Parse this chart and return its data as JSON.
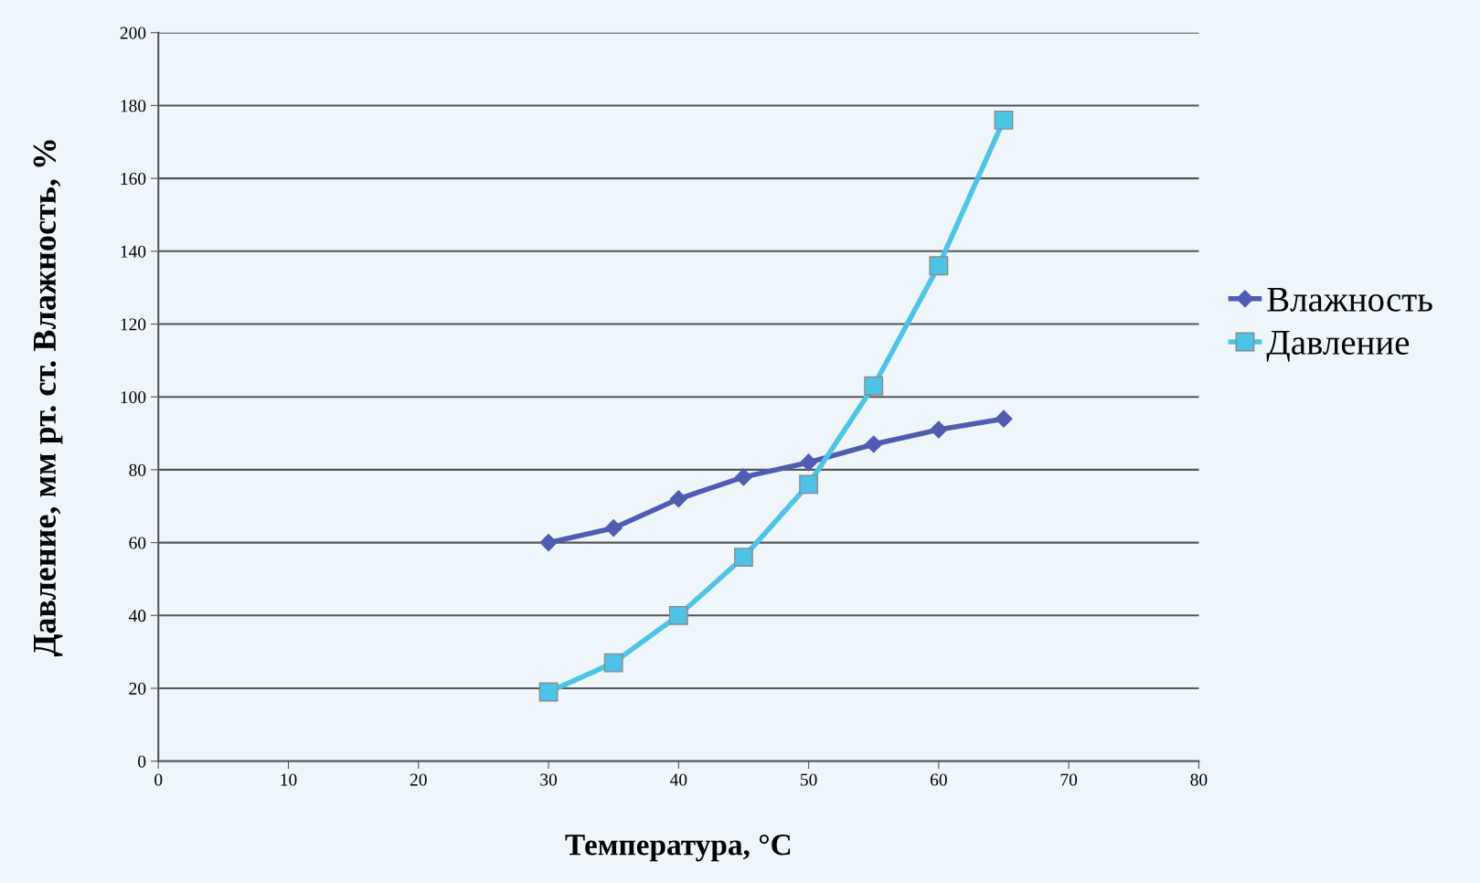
{
  "chart_data": {
    "type": "line",
    "xlabel": "Температура, °C",
    "ylabel": "Давление, мм рт. ст. Влажность, %",
    "xlim": [
      0,
      80
    ],
    "xticks": [
      0,
      10,
      20,
      30,
      40,
      50,
      60,
      70,
      80
    ],
    "ylim": [
      0,
      200
    ],
    "yticks": [
      0,
      20,
      40,
      60,
      80,
      100,
      120,
      140,
      160,
      180,
      200
    ],
    "grid": "y",
    "legend": "right",
    "line_style": "solid",
    "series": [
      {
        "name": "Влажность",
        "color": "#4f5bb5",
        "marker": "diamond",
        "x": [
          30,
          35,
          40,
          45,
          50,
          55,
          60,
          65
        ],
        "values": [
          60,
          64,
          72,
          78,
          82,
          87,
          91,
          94
        ]
      },
      {
        "name": "Давление",
        "color": "#4bc4e8",
        "marker": "square",
        "x": [
          30,
          35,
          40,
          45,
          50,
          55,
          60,
          65
        ],
        "values": [
          19,
          27,
          40,
          56,
          76,
          103,
          136,
          176
        ]
      }
    ]
  }
}
